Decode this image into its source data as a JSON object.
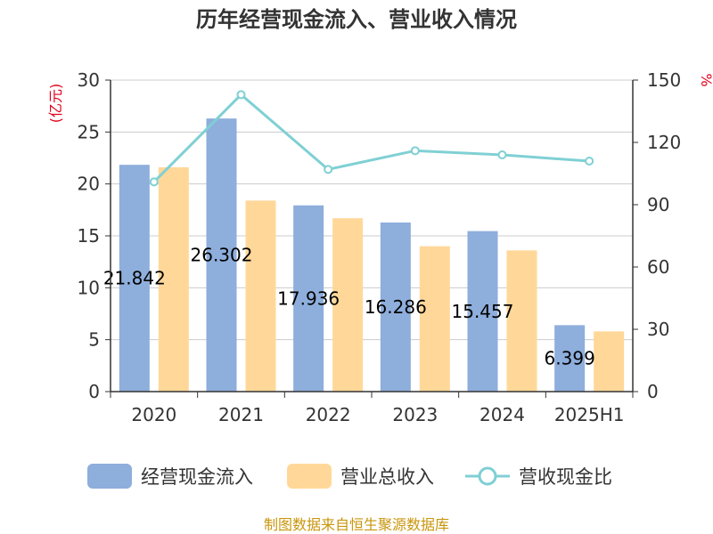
{
  "chart_data": {
    "type": "bar",
    "title": "历年经营现金流入、营业收入情况",
    "categories": [
      "2020",
      "2021",
      "2022",
      "2023",
      "2024",
      "2025H1"
    ],
    "series": [
      {
        "name": "经营现金流入",
        "kind": "bar",
        "axis": "left",
        "color": "#8eaedc",
        "values": [
          21.842,
          26.302,
          17.936,
          16.286,
          15.457,
          6.399
        ],
        "labels": [
          "21.842",
          "26.302",
          "17.936",
          "16.286",
          "15.457",
          "6.399"
        ]
      },
      {
        "name": "营业总收入",
        "kind": "bar",
        "axis": "left",
        "color": "#ffd899",
        "values": [
          21.6,
          18.4,
          16.7,
          14.0,
          13.6,
          5.8
        ]
      },
      {
        "name": "营收现金比",
        "kind": "line",
        "axis": "right",
        "color": "#7fd0d4",
        "values": [
          101,
          143,
          107,
          116,
          114,
          111
        ]
      }
    ],
    "y_left": {
      "unit": "(亿元)",
      "min": 0,
      "max": 30,
      "ticks": [
        0,
        5,
        10,
        15,
        20,
        25,
        30
      ]
    },
    "y_right": {
      "unit": "%",
      "min": 0,
      "max": 150,
      "ticks": [
        0,
        30,
        60,
        90,
        120,
        150
      ]
    },
    "grid": true,
    "legend_position": "bottom",
    "source": "制图数据来自恒生聚源数据库"
  }
}
